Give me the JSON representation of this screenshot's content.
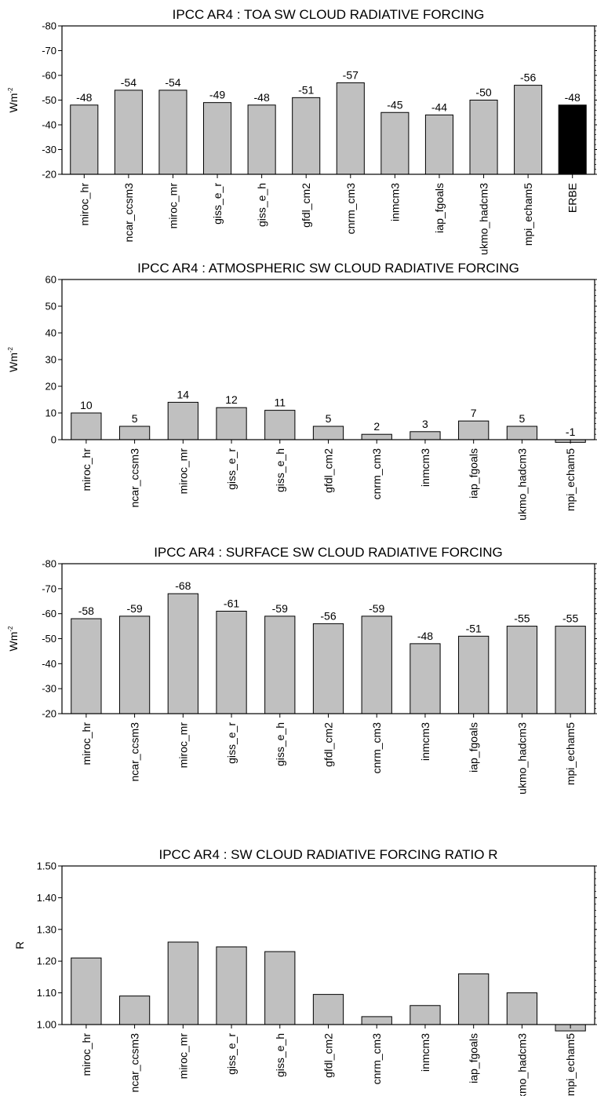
{
  "chart_data": [
    {
      "type": "bar",
      "title": "IPCC AR4 : TOA SW CLOUD RADIATIVE FORCING",
      "xlabel": "",
      "ylabel": "Wm",
      "ylabel_sup": "-2",
      "ylim": [
        -80,
        -20
      ],
      "y_inverted": true,
      "yticks": [
        -80,
        -70,
        -60,
        -50,
        -40,
        -30,
        -20
      ],
      "yticklabels": [
        "-80",
        "-70",
        "-60",
        "-50",
        "-40",
        "-30",
        "-20"
      ],
      "categories": [
        "miroc_hr",
        "ncar_ccsm3",
        "miroc_mr",
        "giss_e_r",
        "giss_e_h",
        "gfdl_cm2",
        "cnrm_cm3",
        "inmcm3",
        "iap_fgoals",
        "ukmo_hadcm3",
        "mpi_echam5",
        "ERBE"
      ],
      "values": [
        -48,
        -54,
        -54,
        -49,
        -48,
        -51,
        -57,
        -45,
        -44,
        -50,
        -56,
        -48
      ],
      "data_labels": [
        "-48",
        "-54",
        "-54",
        "-49",
        "-48",
        "-51",
        "-57",
        "-45",
        "-44",
        "-50",
        "-56",
        "-48"
      ],
      "bar_colors": [
        "#c0c0c0",
        "#c0c0c0",
        "#c0c0c0",
        "#c0c0c0",
        "#c0c0c0",
        "#c0c0c0",
        "#c0c0c0",
        "#c0c0c0",
        "#c0c0c0",
        "#c0c0c0",
        "#c0c0c0",
        "#000000"
      ],
      "grid": false,
      "legend": "none"
    },
    {
      "type": "bar",
      "title": "IPCC AR4 : ATMOSPHERIC SW CLOUD RADIATIVE FORCING",
      "xlabel": "",
      "ylabel": "Wm",
      "ylabel_sup": "-2",
      "ylim": [
        0,
        60
      ],
      "y_inverted": false,
      "yticks": [
        0,
        10,
        20,
        30,
        40,
        50,
        60
      ],
      "yticklabels": [
        "0",
        "10",
        "20",
        "30",
        "40",
        "50",
        "60"
      ],
      "categories": [
        "miroc_hr",
        "ncar_ccsm3",
        "miroc_mr",
        "giss_e_r",
        "giss_e_h",
        "gfdl_cm2",
        "cnrm_cm3",
        "inmcm3",
        "iap_fgoals",
        "ukmo_hadcm3",
        "mpi_echam5"
      ],
      "values": [
        10,
        5,
        14,
        12,
        11,
        5,
        2,
        3,
        7,
        5,
        -1
      ],
      "data_labels": [
        "10",
        "5",
        "14",
        "12",
        "11",
        "5",
        "2",
        "3",
        "7",
        "5",
        "-1"
      ],
      "bar_colors": [
        "#c0c0c0",
        "#c0c0c0",
        "#c0c0c0",
        "#c0c0c0",
        "#c0c0c0",
        "#c0c0c0",
        "#c0c0c0",
        "#c0c0c0",
        "#c0c0c0",
        "#c0c0c0",
        "#c0c0c0"
      ],
      "grid": false,
      "legend": "none"
    },
    {
      "type": "bar",
      "title": "IPCC AR4 : SURFACE SW CLOUD RADIATIVE FORCING",
      "xlabel": "",
      "ylabel": "Wm",
      "ylabel_sup": "-2",
      "ylim": [
        -80,
        -20
      ],
      "y_inverted": true,
      "yticks": [
        -80,
        -70,
        -60,
        -50,
        -40,
        -30,
        -20
      ],
      "yticklabels": [
        "-80",
        "-70",
        "-60",
        "-50",
        "-40",
        "-30",
        "-20"
      ],
      "categories": [
        "miroc_hr",
        "ncar_ccsm3",
        "miroc_mr",
        "giss_e_r",
        "giss_e_h",
        "gfdl_cm2",
        "cnrm_cm3",
        "inmcm3",
        "iap_fgoals",
        "ukmo_hadcm3",
        "mpi_echam5"
      ],
      "values": [
        -58,
        -59,
        -68,
        -61,
        -59,
        -56,
        -59,
        -48,
        -51,
        -55,
        -55
      ],
      "data_labels": [
        "-58",
        "-59",
        "-68",
        "-61",
        "-59",
        "-56",
        "-59",
        "-48",
        "-51",
        "-55",
        "-55"
      ],
      "bar_colors": [
        "#c0c0c0",
        "#c0c0c0",
        "#c0c0c0",
        "#c0c0c0",
        "#c0c0c0",
        "#c0c0c0",
        "#c0c0c0",
        "#c0c0c0",
        "#c0c0c0",
        "#c0c0c0",
        "#c0c0c0"
      ],
      "grid": false,
      "legend": "none"
    },
    {
      "type": "bar",
      "title": "IPCC AR4 : SW CLOUD RADIATIVE FORCING RATIO R",
      "xlabel": "",
      "ylabel": "R",
      "ylabel_sup": "",
      "ylim": [
        1.0,
        1.5
      ],
      "y_inverted": false,
      "yticks": [
        1.0,
        1.1,
        1.2,
        1.3,
        1.4,
        1.5
      ],
      "yticklabels": [
        "1.00",
        "1.10",
        "1.20",
        "1.30",
        "1.40",
        "1.50"
      ],
      "categories": [
        "miroc_hr",
        "ncar_ccsm3",
        "miroc_mr",
        "giss_e_r",
        "giss_e_h",
        "gfdl_cm2",
        "cnrm_cm3",
        "inmcm3",
        "iap_fgoals",
        "ukmo_hadcm3",
        "mpi_echam5"
      ],
      "values": [
        1.21,
        1.09,
        1.26,
        1.245,
        1.23,
        1.095,
        1.025,
        1.06,
        1.16,
        1.1,
        0.98
      ],
      "data_labels": [],
      "bar_colors": [
        "#c0c0c0",
        "#c0c0c0",
        "#c0c0c0",
        "#c0c0c0",
        "#c0c0c0",
        "#c0c0c0",
        "#c0c0c0",
        "#c0c0c0",
        "#c0c0c0",
        "#c0c0c0",
        "#c0c0c0"
      ],
      "grid": false,
      "legend": "none"
    }
  ]
}
